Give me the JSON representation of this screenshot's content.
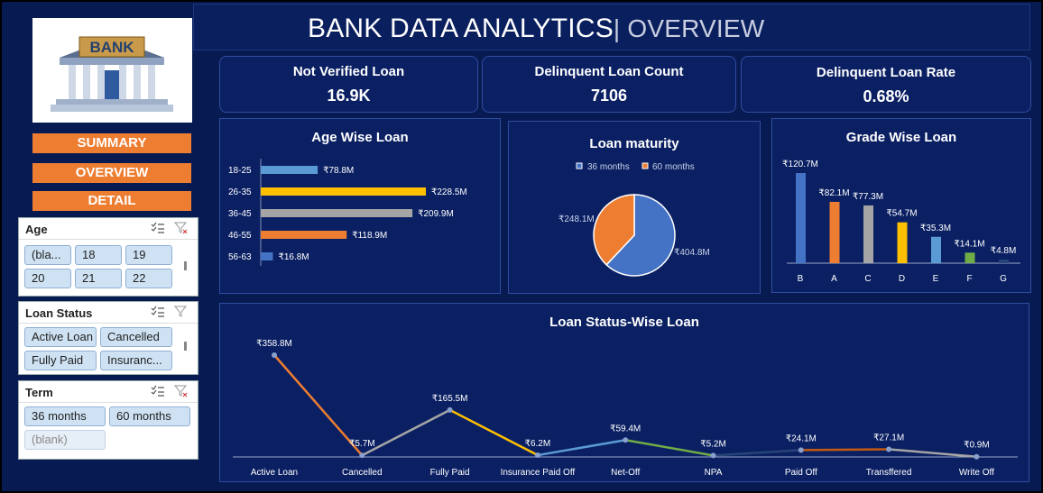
{
  "header": {
    "title": "BANK DATA ANALYTICS",
    "subtitle": "| OVERVIEW"
  },
  "logo": {
    "text": "BANK"
  },
  "nav": {
    "summary": "SUMMARY",
    "overview": "OVERVIEW",
    "detail": "DETAIL"
  },
  "slicers": {
    "age": {
      "title": "Age",
      "items": [
        "(bla...",
        "18",
        "19",
        "20",
        "21",
        "22"
      ]
    },
    "loan_status": {
      "title": "Loan Status",
      "items": [
        "Active Loan",
        "Cancelled",
        "Fully Paid",
        "Insuranc..."
      ]
    },
    "term": {
      "title": "Term",
      "items": [
        "36 months",
        "60 months",
        "(blank)"
      ]
    }
  },
  "kpis": {
    "not_verified": {
      "label": "Not Verified Loan",
      "value": "16.9K"
    },
    "delinquent_count": {
      "label": "Delinquent Loan Count",
      "value": "7106"
    },
    "delinquent_rate": {
      "label": "Delinquent Loan Rate",
      "value": "0.68%"
    }
  },
  "colors": {
    "blue": "#4472c4",
    "orange": "#ed7d31",
    "gray": "#a5a5a5",
    "yellow": "#ffc000",
    "lightblue": "#5b9bd5",
    "green": "#70ad47",
    "navy": "#264478"
  },
  "chart_data": [
    {
      "type": "bar",
      "title": "Age Wise Loan",
      "orientation": "horizontal",
      "categories": [
        "18-25",
        "26-35",
        "36-45",
        "46-55",
        "56-63"
      ],
      "values": [
        78.8,
        228.5,
        209.9,
        118.9,
        16.8
      ],
      "labels": [
        "₹78.8M",
        "₹228.5M",
        "₹209.9M",
        "₹118.9M",
        "₹16.8M"
      ],
      "unit": "₹M"
    },
    {
      "type": "pie",
      "title": "Loan maturity",
      "legend": [
        "36 months",
        "60 months"
      ],
      "values": [
        404.8,
        248.1
      ],
      "labels": [
        "₹404.8M",
        "₹248.1M"
      ],
      "legend_position": "top"
    },
    {
      "type": "bar",
      "title": "Grade Wise Loan",
      "categories": [
        "B",
        "A",
        "C",
        "D",
        "E",
        "F",
        "G"
      ],
      "values": [
        120.7,
        82.1,
        77.3,
        54.7,
        35.3,
        14.1,
        4.8
      ],
      "labels": [
        "₹120.7M",
        "₹82.1M",
        "₹77.3M",
        "₹54.7M",
        "₹35.3M",
        "₹14.1M",
        "₹4.8M"
      ],
      "unit": "₹M"
    },
    {
      "type": "line",
      "title": "Loan Status-Wise Loan",
      "categories": [
        "Active Loan",
        "Cancelled",
        "Fully Paid",
        "Insurance Paid Off",
        "Net-Off",
        "NPA",
        "Paid Off",
        "Transffered",
        "Write Off"
      ],
      "values": [
        358.8,
        5.7,
        165.5,
        6.2,
        59.4,
        5.2,
        24.1,
        27.1,
        0.9
      ],
      "labels": [
        "₹358.8M",
        "₹5.7M",
        "₹165.5M",
        "₹6.2M",
        "₹59.4M",
        "₹5.2M",
        "₹24.1M",
        "₹27.1M",
        "₹0.9M"
      ],
      "unit": "₹M"
    }
  ]
}
